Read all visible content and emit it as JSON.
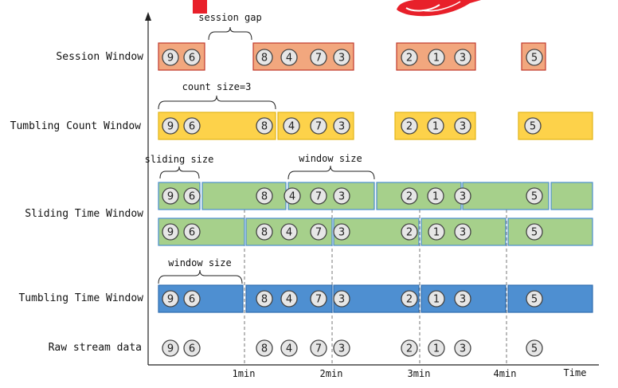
{
  "rows": [
    {
      "id": "session",
      "label": "Session Window"
    },
    {
      "id": "count",
      "label": "Tumbling Count Window"
    },
    {
      "id": "sliding",
      "label": "Sliding Time Window"
    },
    {
      "id": "tumbling",
      "label": "Tumbling Time Window"
    },
    {
      "id": "raw",
      "label": "Raw stream data"
    }
  ],
  "axis": {
    "ticks": [
      "1min",
      "2min",
      "3min",
      "4min"
    ],
    "end_label": "Time"
  },
  "annotations": {
    "session_gap": "session gap",
    "count_size": "count size=3",
    "sliding_size": "sliding size",
    "window_size_sliding": "window size",
    "window_size_tumbling": "window size"
  },
  "events": [
    "9",
    "6",
    "8",
    "4",
    "7",
    "3",
    "2",
    "1",
    "3",
    "5"
  ],
  "colors": {
    "session": "#f2a77e",
    "count": "#fdd24a",
    "sliding": "#a6d08b",
    "tumbling": "#4e8fd1",
    "event_fill": "#e6e6e6",
    "logo_red": "#e8202a"
  }
}
